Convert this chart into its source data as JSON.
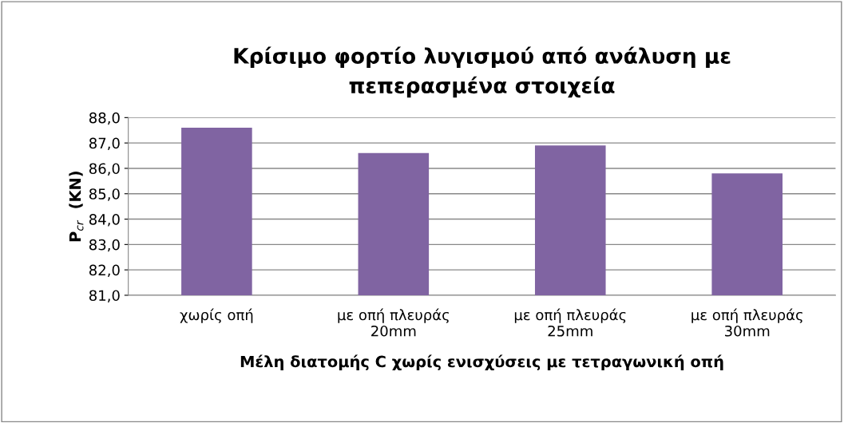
{
  "chart_data": {
    "type": "bar",
    "title": "Κρίσιμο φορτίο λυγισμού από ανάλυση με\nπεπερασμένα στοιχεία",
    "xlabel": "Μέλη διατομής C χωρίς ενισχύσεις με τετραγωνική οπή",
    "ylabel": "P$_{cr}$  (KN)",
    "categories": [
      "χωρίς οπή",
      "με οπή πλευράς\n20mm",
      "με οπή πλευράς\n25mm",
      "με οπή πλευράς\n30mm"
    ],
    "values": [
      87.6,
      86.6,
      86.9,
      85.8
    ],
    "color": "#8064a2",
    "ylim": [
      81,
      88
    ],
    "yticks": [
      {
        "value": 81,
        "label": "81,0"
      },
      {
        "value": 82,
        "label": "82,0"
      },
      {
        "value": 83,
        "label": "83,0"
      },
      {
        "value": 84,
        "label": "84,0"
      },
      {
        "value": 85,
        "label": "85,0"
      },
      {
        "value": 86,
        "label": "86,0"
      },
      {
        "value": 87,
        "label": "87,0"
      },
      {
        "value": 88,
        "label": "88,0"
      }
    ],
    "grid": "y",
    "legend": false
  }
}
